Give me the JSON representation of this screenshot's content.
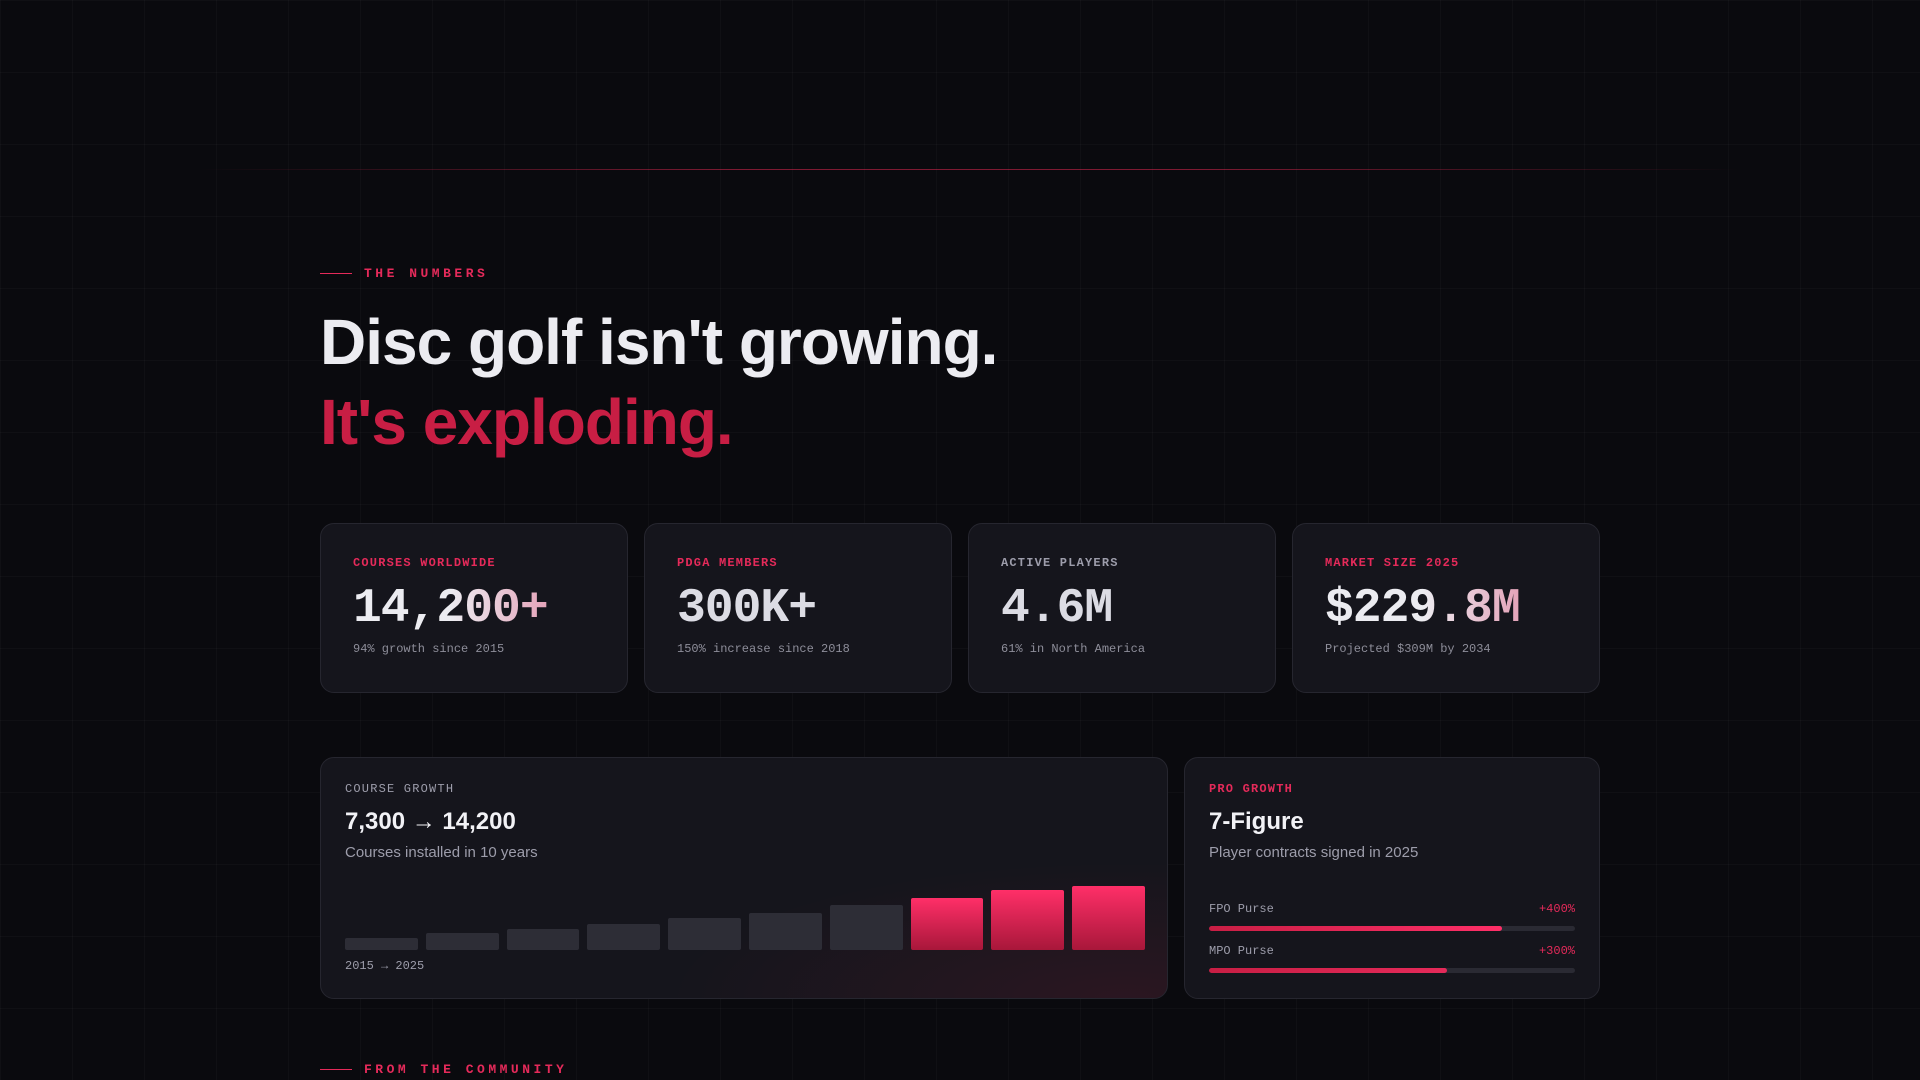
{
  "section_eyebrow": "THE NUMBERS",
  "headline": {
    "line1": "Disc golf isn't growing.",
    "line2": "It's exploding."
  },
  "stats": [
    {
      "label": "COURSES WORLDWIDE",
      "value": "14,200+",
      "sub": "94% growth since 2015",
      "label_color": "pink"
    },
    {
      "label": "PDGA MEMBERS",
      "value": "300K+",
      "sub": "150% increase since 2018",
      "label_color": "pink"
    },
    {
      "label": "ACTIVE PLAYERS",
      "value": "4.6M",
      "sub": "61% in North America",
      "label_color": "gray"
    },
    {
      "label": "MARKET SIZE 2025",
      "value": "$229.8M",
      "sub": "Projected $309M by 2034",
      "label_color": "pink"
    }
  ],
  "course_growth": {
    "label": "COURSE GROWTH",
    "title_from": "7,300",
    "arrow": "→",
    "title_to": "14,200",
    "subtitle": "Courses installed in 10 years",
    "range_label": "2015 → 2025",
    "bars": [
      {
        "level": 0.19,
        "highlight": false
      },
      {
        "level": 0.27,
        "highlight": false
      },
      {
        "level": 0.33,
        "highlight": false
      },
      {
        "level": 0.41,
        "highlight": false
      },
      {
        "level": 0.5,
        "highlight": false
      },
      {
        "level": 0.58,
        "highlight": false
      },
      {
        "level": 0.7,
        "highlight": false
      },
      {
        "level": 0.82,
        "highlight": true
      },
      {
        "level": 0.93,
        "highlight": true
      },
      {
        "level": 1.0,
        "highlight": true
      }
    ]
  },
  "pro_growth": {
    "label": "PRO GROWTH",
    "title": "7-Figure",
    "subtitle": "Player contracts signed in 2025",
    "purses": [
      {
        "name": "FPO Purse",
        "change": "+400%",
        "progress": 0.8
      },
      {
        "name": "MPO Purse",
        "change": "+300%",
        "progress": 0.65
      }
    ]
  },
  "next_section_eyebrow": "FROM THE COMMUNITY",
  "colors": {
    "accent": "#e52a5a",
    "accent_dark": "#c81e44",
    "background": "#0a0a0e",
    "card": "#15151c"
  }
}
